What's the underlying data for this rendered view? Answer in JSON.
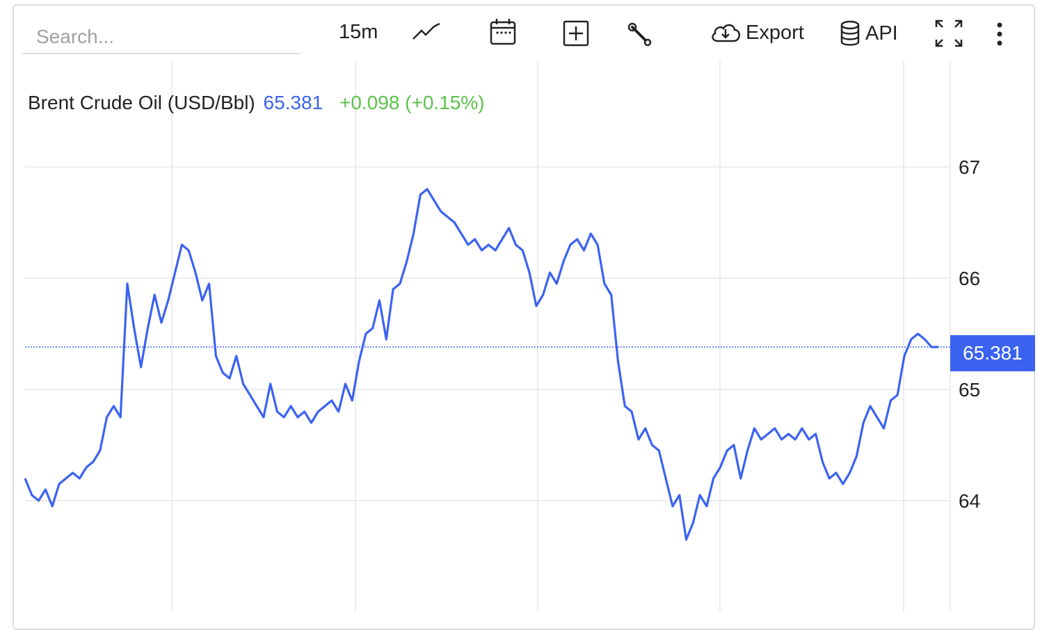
{
  "search": {
    "placeholder": "Search..."
  },
  "toolbar": {
    "interval_label": "15m",
    "chart_type_icon": "line-chart-icon",
    "calendar_icon": "calendar-icon",
    "compare_icon": "plus-square-icon",
    "settings_icon": "wrench-icon",
    "export_label": "Export",
    "export_icon": "cloud-download-icon",
    "api_label": "API",
    "api_icon": "database-icon",
    "fullscreen_icon": "expand-icon",
    "more_icon": "more-vertical-icon"
  },
  "header": {
    "instrument": "Brent Crude Oil (USD/Bbl)",
    "price": "65.381",
    "change": "+0.098 (+0.15%)"
  },
  "colors": {
    "line": "#3b63f0",
    "positive": "#5cc24a",
    "grid": "#e6e6e6"
  },
  "chart_data": {
    "type": "line",
    "title": "Brent Crude Oil (USD/Bbl)",
    "ylim": [
      63.0,
      67.95
    ],
    "yticks": [
      "67",
      "66",
      "65",
      "64"
    ],
    "ytick_values": [
      67,
      66,
      65,
      64
    ],
    "x_range": [
      0,
      1000
    ],
    "last_price_label": "65.381",
    "last_price": 65.381,
    "grid": true,
    "series": [
      {
        "values": [
          64.2,
          64.05,
          64.0,
          64.1,
          63.95,
          64.15,
          64.2,
          64.25,
          64.2,
          64.3,
          64.35,
          64.45,
          64.75,
          64.85,
          64.75,
          65.95,
          65.55,
          65.2,
          65.55,
          65.85,
          65.6,
          65.8,
          66.05,
          66.3,
          66.25,
          66.05,
          65.8,
          65.95,
          65.3,
          65.15,
          65.1,
          65.3,
          65.05,
          64.95,
          64.85,
          64.75,
          65.05,
          64.8,
          64.75,
          64.85,
          64.75,
          64.8,
          64.7,
          64.8,
          64.85,
          64.9,
          64.8,
          65.05,
          64.9,
          65.25,
          65.5,
          65.55,
          65.8,
          65.45,
          65.9,
          65.95,
          66.15,
          66.4,
          66.75,
          66.8,
          66.7,
          66.6,
          66.55,
          66.5,
          66.4,
          66.3,
          66.35,
          66.25,
          66.3,
          66.25,
          66.35,
          66.45,
          66.3,
          66.25,
          66.05,
          65.75,
          65.85,
          66.05,
          65.95,
          66.15,
          66.3,
          66.35,
          66.25,
          66.4,
          66.3,
          65.95,
          65.85,
          65.25,
          64.85,
          64.8,
          64.55,
          64.65,
          64.5,
          64.45,
          64.2,
          63.95,
          64.05,
          63.65,
          63.8,
          64.05,
          63.95,
          64.2,
          64.3,
          64.45,
          64.5,
          64.2,
          64.45,
          64.65,
          64.55,
          64.6,
          64.65,
          64.55,
          64.6,
          64.55,
          64.65,
          64.55,
          64.6,
          64.35,
          64.2,
          64.25,
          64.15,
          64.25,
          64.4,
          64.7,
          64.85,
          64.75,
          64.65,
          64.9,
          64.95,
          65.3,
          65.45,
          65.5,
          65.45,
          65.38,
          65.381
        ]
      }
    ]
  }
}
